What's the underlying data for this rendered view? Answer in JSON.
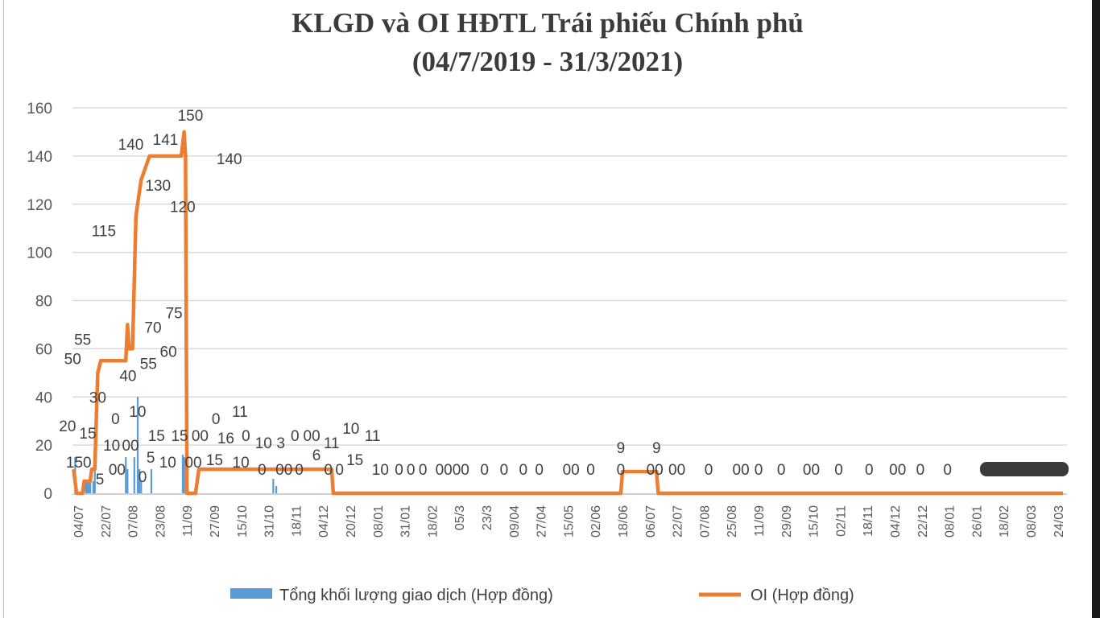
{
  "chart_data": {
    "type": "bar+line",
    "title": "KLGD và OI HĐTL Trái phiếu Chính phủ",
    "subtitle": "(04/7/2019 - 31/3/2021)",
    "ylim": [
      0,
      160
    ],
    "y_ticks": [
      0,
      20,
      40,
      60,
      80,
      100,
      120,
      140,
      160
    ],
    "grid": true,
    "legend_position": "bottom",
    "x_ticks": [
      {
        "date": "2019-07-04",
        "label": "04/07"
      },
      {
        "date": "2019-07-22",
        "label": "22/07"
      },
      {
        "date": "2019-08-07",
        "label": "07/08"
      },
      {
        "date": "2019-08-23",
        "label": "23/08"
      },
      {
        "date": "2019-09-11",
        "label": "11/09"
      },
      {
        "date": "2019-09-27",
        "label": "27/09"
      },
      {
        "date": "2019-10-15",
        "label": "15/10"
      },
      {
        "date": "2019-10-31",
        "label": "31/10"
      },
      {
        "date": "2019-11-18",
        "label": "18/11"
      },
      {
        "date": "2019-12-04",
        "label": "04/12"
      },
      {
        "date": "2019-12-20",
        "label": "20/12"
      },
      {
        "date": "2020-01-08",
        "label": "08/01"
      },
      {
        "date": "2020-01-31",
        "label": "31/01"
      },
      {
        "date": "2020-02-18",
        "label": "18/02"
      },
      {
        "date": "2020-03-05",
        "label": "05/3"
      },
      {
        "date": "2020-03-23",
        "label": "23/3"
      },
      {
        "date": "2020-04-09",
        "label": "09/04"
      },
      {
        "date": "2020-04-27",
        "label": "27/04"
      },
      {
        "date": "2020-05-15",
        "label": "15/05"
      },
      {
        "date": "2020-06-02",
        "label": "02/06"
      },
      {
        "date": "2020-06-18",
        "label": "18/06"
      },
      {
        "date": "2020-07-06",
        "label": "06/07"
      },
      {
        "date": "2020-07-22",
        "label": "22/07"
      },
      {
        "date": "2020-08-07",
        "label": "07/08"
      },
      {
        "date": "2020-08-25",
        "label": "25/08"
      },
      {
        "date": "2020-09-11",
        "label": "11/09"
      },
      {
        "date": "2020-09-29",
        "label": "29/09"
      },
      {
        "date": "2020-10-15",
        "label": "15/10"
      },
      {
        "date": "2020-11-02",
        "label": "02/11"
      },
      {
        "date": "2020-11-18",
        "label": "18/11"
      },
      {
        "date": "2020-12-04",
        "label": "04/12"
      },
      {
        "date": "2020-12-22",
        "label": "22/12"
      },
      {
        "date": "2021-01-08",
        "label": "08/01"
      },
      {
        "date": "2021-01-26",
        "label": "26/01"
      },
      {
        "date": "2021-02-18",
        "label": "18/02"
      },
      {
        "date": "2021-03-08",
        "label": "08/03"
      },
      {
        "date": "2021-03-24",
        "label": "24/03"
      }
    ],
    "series": [
      {
        "name": "Tổng khối lượng giao dịch  (Hợp đồng)",
        "type": "bar",
        "color": "#5b9bd5",
        "points": [
          {
            "x": "2019-07-02",
            "y": 15
          },
          {
            "x": "2019-07-09",
            "y": 5
          },
          {
            "x": "2019-07-10",
            "y": 5
          },
          {
            "x": "2019-07-11",
            "y": 5
          },
          {
            "x": "2019-07-12",
            "y": 5
          },
          {
            "x": "2019-07-14",
            "y": 5
          },
          {
            "x": "2019-07-15",
            "y": 10
          },
          {
            "x": "2019-08-03",
            "y": 15
          },
          {
            "x": "2019-08-04",
            "y": 10
          },
          {
            "x": "2019-08-08",
            "y": 15
          },
          {
            "x": "2019-08-10",
            "y": 40
          },
          {
            "x": "2019-08-11",
            "y": 10
          },
          {
            "x": "2019-08-12",
            "y": 5
          },
          {
            "x": "2019-08-18",
            "y": 10
          },
          {
            "x": "2019-09-08",
            "y": 16
          },
          {
            "x": "2019-09-09",
            "y": 15
          },
          {
            "x": "2019-11-03",
            "y": 6
          },
          {
            "x": "2019-11-05",
            "y": 3
          }
        ]
      },
      {
        "name": "OI (Hợp đồng)",
        "type": "line",
        "color": "#ed7d31",
        "points": [
          {
            "x": "2019-07-01",
            "y": 10
          },
          {
            "x": "2019-07-03",
            "y": 0
          },
          {
            "x": "2019-07-07",
            "y": 0
          },
          {
            "x": "2019-07-08",
            "y": 5
          },
          {
            "x": "2019-07-12",
            "y": 5
          },
          {
            "x": "2019-07-13",
            "y": 10
          },
          {
            "x": "2019-07-15",
            "y": 10
          },
          {
            "x": "2019-07-16",
            "y": 30
          },
          {
            "x": "2019-07-17",
            "y": 50
          },
          {
            "x": "2019-07-19",
            "y": 55
          },
          {
            "x": "2019-08-03",
            "y": 55
          },
          {
            "x": "2019-08-04",
            "y": 70
          },
          {
            "x": "2019-08-05",
            "y": 60
          },
          {
            "x": "2019-08-07",
            "y": 60
          },
          {
            "x": "2019-08-09",
            "y": 115
          },
          {
            "x": "2019-08-10",
            "y": 120
          },
          {
            "x": "2019-08-12",
            "y": 130
          },
          {
            "x": "2019-08-17",
            "y": 140
          },
          {
            "x": "2019-09-07",
            "y": 140
          },
          {
            "x": "2019-09-09",
            "y": 150
          },
          {
            "x": "2019-09-10",
            "y": 140
          },
          {
            "x": "2019-09-11",
            "y": 0
          },
          {
            "x": "2019-09-16",
            "y": 0
          },
          {
            "x": "2019-09-18",
            "y": 10
          },
          {
            "x": "2019-12-09",
            "y": 10
          },
          {
            "x": "2019-12-10",
            "y": 0
          },
          {
            "x": "2020-06-17",
            "y": 0
          },
          {
            "x": "2020-06-18",
            "y": 9
          },
          {
            "x": "2020-07-10",
            "y": 9
          },
          {
            "x": "2020-07-11",
            "y": 0
          },
          {
            "x": "2021-03-27",
            "y": 0
          }
        ]
      }
    ],
    "data_labels": [
      {
        "text": "20",
        "x": "2019-06-27",
        "y": 28
      },
      {
        "text": "15",
        "x": "2019-07-04",
        "y": 25
      },
      {
        "text": "150",
        "x": "2019-06-28",
        "y": 20
      },
      {
        "text": "10",
        "x": "2019-07-07",
        "y": 20
      },
      {
        "text": "00",
        "x": "2019-07-12",
        "y": 20
      },
      {
        "text": "5",
        "x": "2019-07-12",
        "y": 13
      },
      {
        "text": "00",
        "x": "2019-07-17",
        "y": 10
      },
      {
        "text": "0",
        "x": "2019-07-20",
        "y": 0
      },
      {
        "text": "55",
        "x": "2019-07-07",
        "y": 64
      },
      {
        "text": "50",
        "x": "2019-06-24",
        "y": 56
      },
      {
        "text": "30",
        "x": "2019-07-17",
        "y": 40
      },
      {
        "text": "115",
        "x": "2019-07-21",
        "y": 109
      },
      {
        "text": "140",
        "x": "2019-08-06",
        "y": 145
      },
      {
        "text": "141",
        "x": "2019-08-27",
        "y": 147
      },
      {
        "text": "130",
        "x": "2019-08-22",
        "y": 128
      },
      {
        "text": "150",
        "x": "2019-09-13",
        "y": 157
      },
      {
        "text": "140",
        "x": "2019-10-07",
        "y": 139
      },
      {
        "text": "120",
        "x": "2019-09-08",
        "y": 119
      },
      {
        "text": "75",
        "x": "2019-09-02",
        "y": 75
      },
      {
        "text": "70",
        "x": "2019-08-25",
        "y": 69
      },
      {
        "text": "60",
        "x": "2019-08-29",
        "y": 59
      },
      {
        "text": "55",
        "x": "2019-08-22",
        "y": 54
      },
      {
        "text": "40",
        "x": "2019-08-10",
        "y": 49
      },
      {
        "text": "15",
        "x": "2019-08-04",
        "y": 24
      },
      {
        "text": "15",
        "x": "2019-08-11",
        "y": 24
      },
      {
        "text": "10",
        "x": "2019-08-04",
        "y": 20
      },
      {
        "text": "10",
        "x": "2019-08-10",
        "y": 20
      },
      {
        "text": "00",
        "x": "2019-08-19",
        "y": 20
      },
      {
        "text": "5",
        "x": "2019-08-12",
        "y": 15
      },
      {
        "text": "0",
        "x": "2019-08-14",
        "y": 10
      },
      {
        "text": "00",
        "x": "2019-08-23",
        "y": 10
      },
      {
        "text": "16",
        "x": "2019-09-10",
        "y": 23
      },
      {
        "text": "15",
        "x": "2019-09-10",
        "y": 21
      },
      {
        "text": "10",
        "x": "2019-09-19",
        "y": 20
      },
      {
        "text": "0",
        "x": "2019-09-11",
        "y": 10
      },
      {
        "text": "0",
        "x": "2019-09-22",
        "y": 10
      },
      {
        "text": "0",
        "x": "2019-10-02",
        "y": 10
      },
      {
        "text": "10",
        "x": "2019-10-03",
        "y": 21
      },
      {
        "text": "11",
        "x": "2019-10-14",
        "y": 27
      },
      {
        "text": "00",
        "x": "2019-10-23",
        "y": 10
      },
      {
        "text": "0",
        "x": "2019-11-01",
        "y": 10
      },
      {
        "text": "6",
        "x": "2019-11-05",
        "y": 16
      },
      {
        "text": "3",
        "x": "2019-11-08",
        "y": 14
      },
      {
        "text": "0",
        "x": "2019-11-11",
        "y": 10
      },
      {
        "text": "11",
        "x": "2019-11-15",
        "y": 21
      },
      {
        "text": "0",
        "x": "2019-11-20",
        "y": 10
      },
      {
        "text": "15",
        "x": "2019-11-29",
        "y": 14
      },
      {
        "text": "00",
        "x": "2019-12-03",
        "y": 10
      },
      {
        "text": "10",
        "x": "2019-12-09",
        "y": 20
      },
      {
        "text": "10",
        "x": "2019-12-14",
        "y": 10
      },
      {
        "text": "11",
        "x": "2019-12-22",
        "y": 10
      },
      {
        "text": "0",
        "x": "2019-12-26",
        "y": 10
      },
      {
        "text": "0",
        "x": "2020-01-18",
        "y": 10
      },
      {
        "text": "0",
        "x": "2020-01-28",
        "y": 10
      },
      {
        "text": "0",
        "x": "2020-02-12",
        "y": 10
      },
      {
        "text": "0000",
        "x": "2020-03-01",
        "y": 10
      },
      {
        "text": "0",
        "x": "2020-03-09",
        "y": 10
      },
      {
        "text": "0",
        "x": "2020-03-28",
        "y": 10
      },
      {
        "text": "0",
        "x": "2020-04-09",
        "y": 10
      },
      {
        "text": "0",
        "x": "2020-04-26",
        "y": 10
      },
      {
        "text": "00",
        "x": "2020-05-17",
        "y": 10
      },
      {
        "text": "0",
        "x": "2020-05-30",
        "y": 10
      },
      {
        "text": "9",
        "x": "2020-06-17",
        "y": 19
      },
      {
        "text": "0",
        "x": "2020-06-17",
        "y": 10
      },
      {
        "text": "9",
        "x": "2020-07-10",
        "y": 19
      },
      {
        "text": "00",
        "x": "2020-07-09",
        "y": 10
      },
      {
        "text": "00",
        "x": "2020-07-22",
        "y": 10
      },
      {
        "text": "0",
        "x": "2020-08-10",
        "y": 10
      },
      {
        "text": "00",
        "x": "2020-08-31",
        "y": 10
      },
      {
        "text": "0",
        "x": "2020-09-11",
        "y": 10
      },
      {
        "text": "0",
        "x": "2020-09-26",
        "y": 10
      },
      {
        "text": "00",
        "x": "2020-10-14",
        "y": 10
      },
      {
        "text": "0",
        "x": "2020-11-01",
        "y": 10
      },
      {
        "text": "0",
        "x": "2020-11-19",
        "y": 10
      },
      {
        "text": "00",
        "x": "2020-12-06",
        "y": 10
      },
      {
        "text": "0",
        "x": "2020-12-21",
        "y": 10
      },
      {
        "text": "0",
        "x": "2021-01-07",
        "y": 10
      }
    ],
    "legend": [
      {
        "label": "Tổng khối lượng giao dịch  (Hợp đồng)",
        "color": "#5b9bd5",
        "marker": "square"
      },
      {
        "label": "OI (Hợp đồng)",
        "color": "#ed7d31",
        "marker": "line"
      }
    ]
  }
}
